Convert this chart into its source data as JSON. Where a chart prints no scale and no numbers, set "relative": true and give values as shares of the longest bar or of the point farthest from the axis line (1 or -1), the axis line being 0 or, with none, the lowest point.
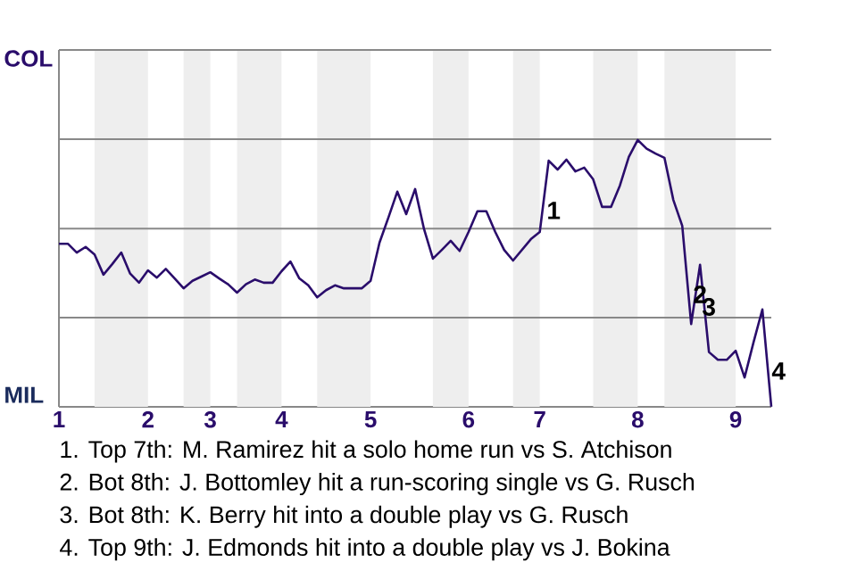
{
  "chart_data": {
    "type": "line",
    "relative": true,
    "categories": [
      "1",
      null,
      null,
      null,
      null,
      null,
      null,
      null,
      null,
      null,
      "2",
      null,
      null,
      null,
      null,
      null,
      null,
      "3",
      null,
      null,
      null,
      null,
      null,
      null,
      null,
      "4",
      null,
      null,
      null,
      null,
      null,
      null,
      null,
      null,
      null,
      "5",
      null,
      null,
      null,
      null,
      null,
      null,
      null,
      null,
      null,
      null,
      "6",
      null,
      null,
      null,
      null,
      null,
      null,
      null,
      "7",
      null,
      null,
      null,
      null,
      null,
      null,
      null,
      null,
      null,
      null,
      "8",
      null,
      null,
      null,
      null,
      null,
      null,
      null,
      null,
      null,
      null,
      "9",
      null,
      null,
      null,
      null
    ],
    "series": [
      {
        "color": "#2a0d6b",
        "values": [
          0.611,
          0.611,
          0.578,
          0.599,
          0.571,
          0.495,
          0.535,
          0.578,
          0.499,
          0.465,
          0.511,
          0.484,
          0.517,
          0.481,
          0.444,
          0.472,
          0.488,
          0.504,
          0.481,
          0.459,
          0.428,
          0.459,
          0.477,
          0.465,
          0.465,
          0.508,
          0.544,
          0.481,
          0.455,
          0.41,
          0.437,
          0.455,
          0.444,
          0.444,
          0.444,
          0.472,
          0.615,
          0.709,
          0.806,
          0.722,
          0.816,
          0.666,
          0.555,
          0.588,
          0.622,
          0.584,
          0.655,
          0.733,
          0.733,
          0.655,
          0.588,
          0.548,
          0.588,
          0.628,
          0.655,
          0.922,
          0.889,
          0.926,
          0.882,
          0.896,
          0.852,
          0.749,
          0.749,
          0.829,
          0.936,
          1,
          0.967,
          0.949,
          0.933,
          0.775,
          0.678,
          0.31,
          0.532,
          0.205,
          0.176,
          0.176,
          0.21,
          0.11,
          0.241,
          0.365,
          0
        ],
        "line_style": "solid"
      }
    ],
    "ref_lines": [
      {
        "axis": "y",
        "value": 0.334,
        "color": "#888888"
      },
      {
        "axis": "y",
        "value": 0.668,
        "color": "#888888"
      },
      {
        "axis": "y",
        "value": 1.003,
        "color": "#888888"
      },
      {
        "axis": "y",
        "value": 1.337,
        "color": "#888888"
      }
    ],
    "annotations": [
      "COL",
      "MIL",
      "1",
      "2",
      "3",
      "4",
      "1. Top 7th: M. Ramirez hit a solo home run vs S. Atchison",
      "2. Bot 8th: J. Bottomley hit a run-scoring single vs G. Rusch",
      "3. Bot 8th: K. Berry hit into a double play vs G. Rusch",
      "4. Top 9th: J. Edmonds hit into a double play vs J. Bokina"
    ]
  }
}
